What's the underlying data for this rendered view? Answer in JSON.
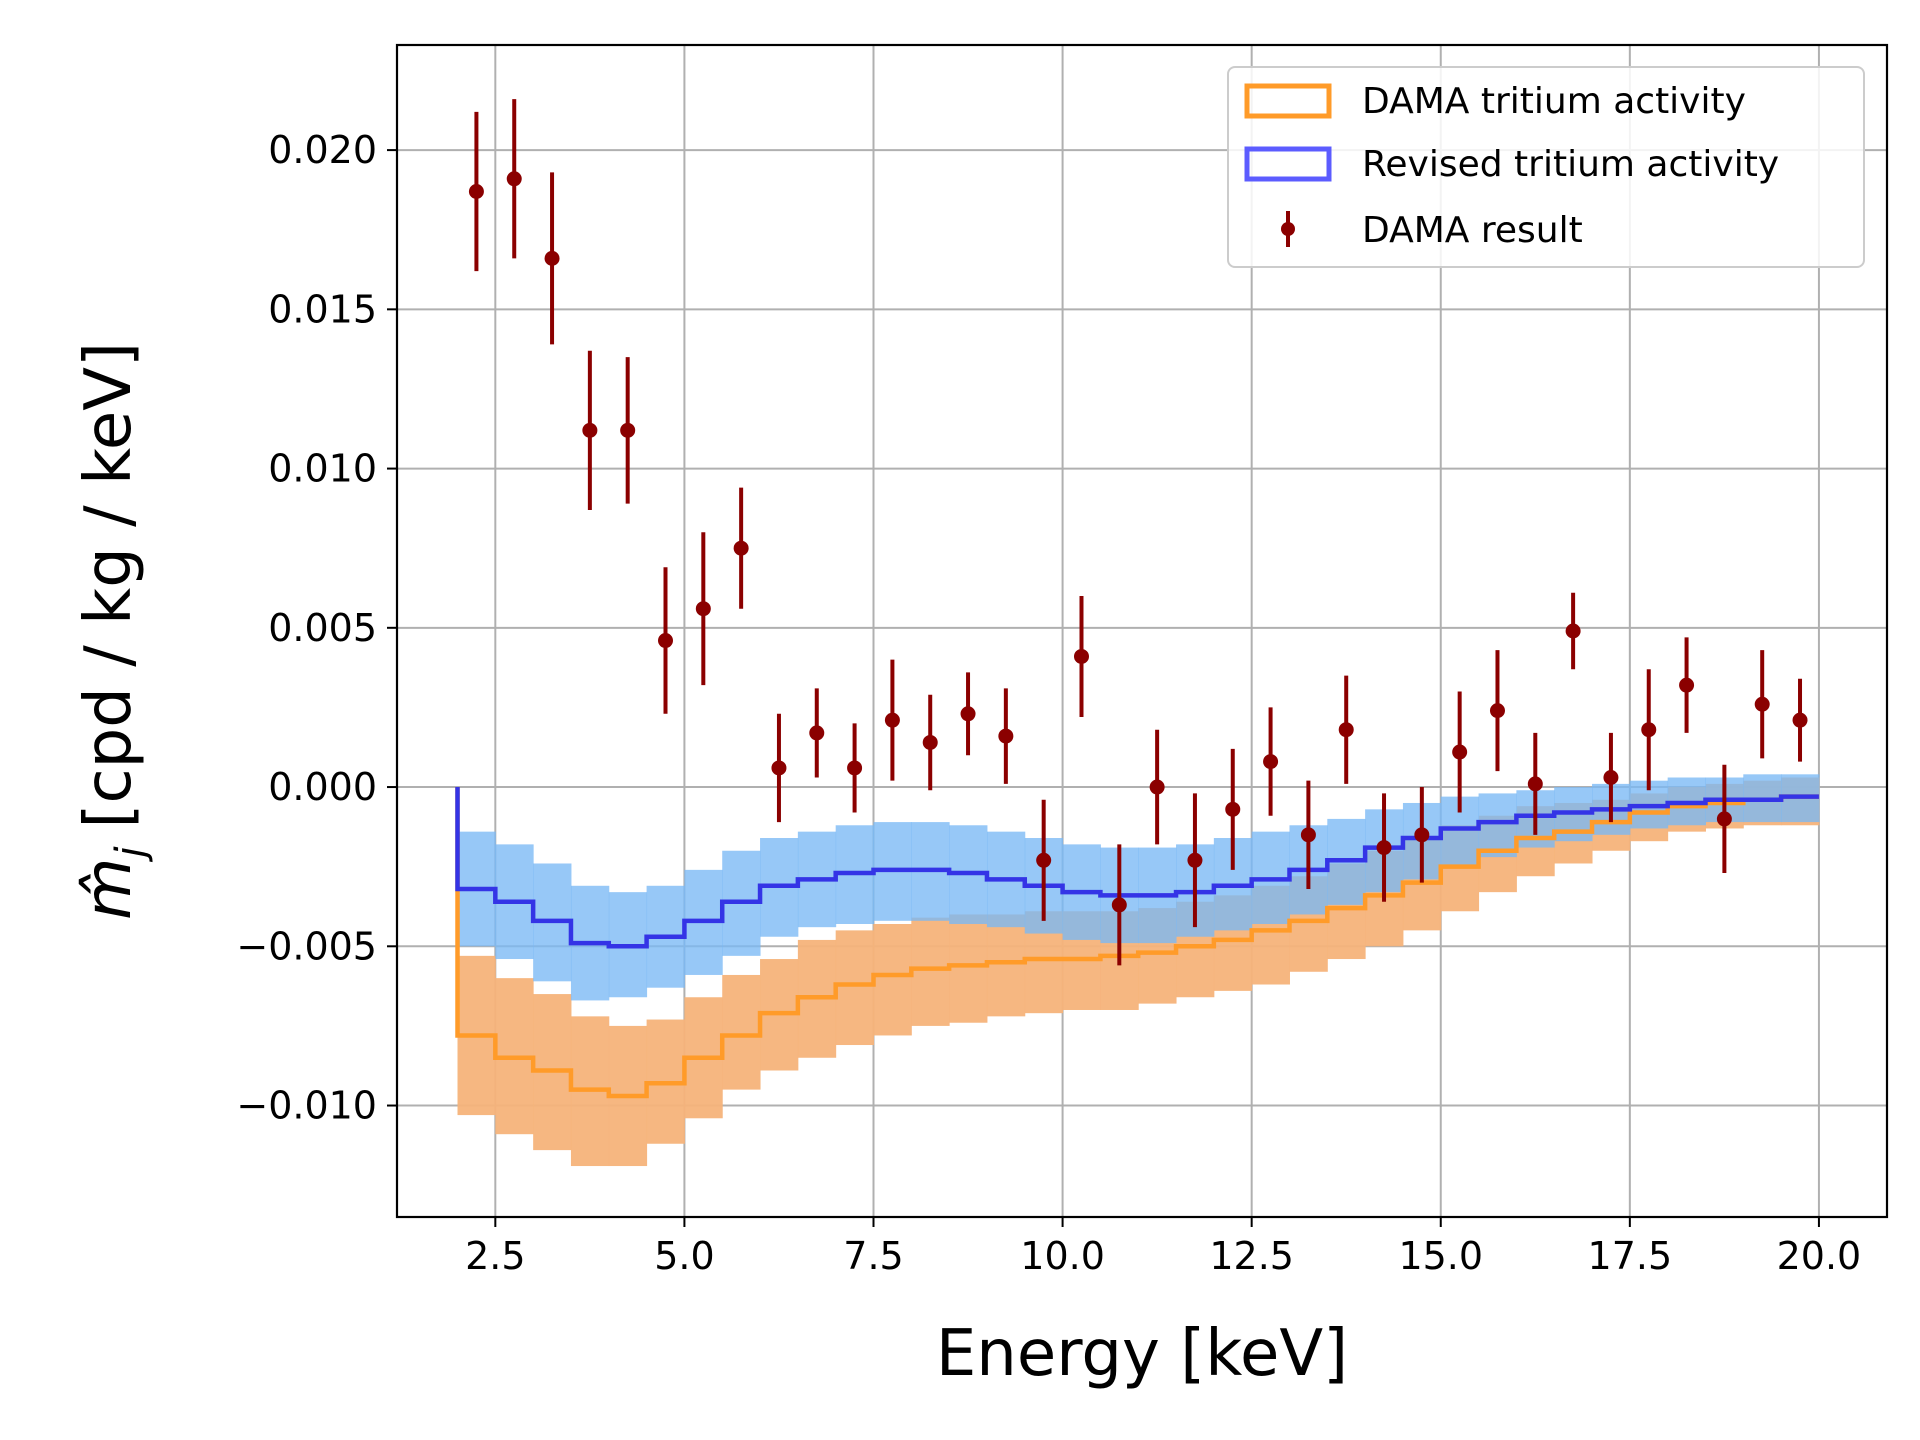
{
  "chart_data": {
    "type": "line",
    "title": "",
    "xlabel": "Energy [keV]",
    "ylabel": "m̂",
    "ylabel_subscript": "j",
    "ylabel_units": "[cpd / kg / keV]",
    "xlim": [
      1.2,
      20.9
    ],
    "ylim": [
      -0.0135,
      0.0233
    ],
    "x_ticks": [
      2.5,
      5.0,
      7.5,
      10.0,
      12.5,
      15.0,
      17.5,
      20.0
    ],
    "x_tick_labels": [
      "2.5",
      "5.0",
      "7.5",
      "10.0",
      "12.5",
      "15.0",
      "17.5",
      "20.0"
    ],
    "y_ticks": [
      -0.01,
      -0.005,
      0.0,
      0.005,
      0.01,
      0.015,
      0.02
    ],
    "y_tick_labels": [
      "−0.010",
      "−0.005",
      "0.000",
      "0.005",
      "0.010",
      "0.015",
      "0.020"
    ],
    "grid": true,
    "legend_position": "top-right",
    "legend": [
      {
        "label": "DAMA tritium activity",
        "kind": "patch",
        "color": "#ff9b29"
      },
      {
        "label": "Revised tritium activity",
        "kind": "patch",
        "color": "#5c5cff"
      },
      {
        "label": "DAMA result",
        "kind": "errorbar",
        "color": "#8b0000"
      }
    ],
    "bin_edges": [
      2.0,
      2.5,
      3.0,
      3.5,
      4.0,
      4.5,
      5.0,
      5.5,
      6.0,
      6.5,
      7.0,
      7.5,
      8.0,
      8.5,
      9.0,
      9.5,
      10.0,
      10.5,
      11.0,
      11.5,
      12.0,
      12.5,
      13.0,
      13.5,
      14.0,
      14.5,
      15.0,
      15.5,
      16.0,
      16.5,
      17.0,
      17.5,
      18.0,
      18.5,
      19.0,
      19.5,
      20.0
    ],
    "series": [
      {
        "name": "DAMA tritium activity",
        "color": "#ff9b29",
        "band_color": "#f5b37a",
        "values": [
          -0.0078,
          -0.0085,
          -0.0089,
          -0.0095,
          -0.0097,
          -0.0093,
          -0.0085,
          -0.0078,
          -0.0071,
          -0.0066,
          -0.0062,
          -0.0059,
          -0.0057,
          -0.0056,
          -0.0055,
          -0.0054,
          -0.0054,
          -0.0053,
          -0.0052,
          -0.005,
          -0.0048,
          -0.0045,
          -0.0042,
          -0.0038,
          -0.0034,
          -0.003,
          -0.0025,
          -0.002,
          -0.0016,
          -0.0014,
          -0.0011,
          -0.0008,
          -0.0006,
          -0.0005,
          -0.0004,
          -0.0003
        ],
        "lower": [
          -0.0103,
          -0.0109,
          -0.0114,
          -0.0119,
          -0.0119,
          -0.0112,
          -0.0104,
          -0.0095,
          -0.0089,
          -0.0085,
          -0.0081,
          -0.0078,
          -0.0075,
          -0.0074,
          -0.0072,
          -0.0071,
          -0.007,
          -0.007,
          -0.0068,
          -0.0066,
          -0.0064,
          -0.0062,
          -0.0058,
          -0.0054,
          -0.005,
          -0.0045,
          -0.0039,
          -0.0033,
          -0.0028,
          -0.0024,
          -0.002,
          -0.0017,
          -0.0014,
          -0.0013,
          -0.0012,
          -0.0012
        ],
        "upper": [
          -0.0053,
          -0.006,
          -0.0065,
          -0.0072,
          -0.0075,
          -0.0073,
          -0.0066,
          -0.0059,
          -0.0054,
          -0.0048,
          -0.0045,
          -0.0043,
          -0.0041,
          -0.004,
          -0.004,
          -0.0039,
          -0.0039,
          -0.0039,
          -0.0038,
          -0.0036,
          -0.0034,
          -0.0031,
          -0.0028,
          -0.0024,
          -0.002,
          -0.0016,
          -0.0012,
          -0.0009,
          -0.0006,
          -0.0005,
          -0.0004,
          -0.0002,
          0.0,
          0.0001,
          0.0002,
          0.0003
        ]
      },
      {
        "name": "Revised tritium activity",
        "color": "#3434e6",
        "band_color": "#7ab8f5",
        "values": [
          -0.0032,
          -0.0036,
          -0.0042,
          -0.0049,
          -0.005,
          -0.0047,
          -0.0042,
          -0.0036,
          -0.0031,
          -0.0029,
          -0.0027,
          -0.0026,
          -0.0026,
          -0.0027,
          -0.0029,
          -0.0031,
          -0.0033,
          -0.0034,
          -0.0034,
          -0.0033,
          -0.0031,
          -0.0029,
          -0.0026,
          -0.0023,
          -0.0019,
          -0.0016,
          -0.0013,
          -0.0011,
          -0.0009,
          -0.0008,
          -0.0007,
          -0.0006,
          -0.0005,
          -0.0004,
          -0.0004,
          -0.0003
        ],
        "lower": [
          -0.005,
          -0.0054,
          -0.0061,
          -0.0067,
          -0.0066,
          -0.0063,
          -0.0059,
          -0.0053,
          -0.0047,
          -0.0044,
          -0.0043,
          -0.0042,
          -0.0042,
          -0.0043,
          -0.0044,
          -0.0046,
          -0.0048,
          -0.0049,
          -0.0049,
          -0.0047,
          -0.0045,
          -0.0043,
          -0.004,
          -0.0037,
          -0.0033,
          -0.0029,
          -0.0025,
          -0.0022,
          -0.0019,
          -0.0017,
          -0.0015,
          -0.0013,
          -0.0012,
          -0.0011,
          -0.0011,
          -0.0011
        ],
        "upper": [
          -0.0014,
          -0.0018,
          -0.0024,
          -0.0031,
          -0.0033,
          -0.0031,
          -0.0026,
          -0.002,
          -0.0016,
          -0.0014,
          -0.0012,
          -0.0011,
          -0.0011,
          -0.0012,
          -0.0014,
          -0.0016,
          -0.0018,
          -0.0019,
          -0.0019,
          -0.0018,
          -0.0016,
          -0.0014,
          -0.0012,
          -0.001,
          -0.0007,
          -0.0005,
          -0.0003,
          -0.0002,
          -0.0001,
          0.0,
          0.0001,
          0.0002,
          0.0003,
          0.0003,
          0.0004,
          0.0004
        ]
      },
      {
        "name": "DAMA result",
        "color": "#8b0000",
        "x": [
          2.25,
          2.75,
          3.25,
          3.75,
          4.25,
          4.75,
          5.25,
          5.75,
          6.25,
          6.75,
          7.25,
          7.75,
          8.25,
          8.75,
          9.25,
          9.75,
          10.25,
          10.75,
          11.25,
          11.75,
          12.25,
          12.75,
          13.25,
          13.75,
          14.25,
          14.75,
          15.25,
          15.75,
          16.25,
          16.75,
          17.25,
          17.75,
          18.25,
          18.75,
          19.25,
          19.75
        ],
        "y": [
          0.0187,
          0.0191,
          0.0166,
          0.0112,
          0.0112,
          0.0046,
          0.0056,
          0.0075,
          0.0006,
          0.0017,
          0.0006,
          0.0021,
          0.0014,
          0.0023,
          0.0016,
          -0.0023,
          0.0041,
          -0.0037,
          0.0,
          -0.0023,
          -0.0007,
          0.0008,
          -0.0015,
          0.0018,
          -0.0019,
          -0.0015,
          0.0011,
          0.0024,
          0.0001,
          0.0049,
          0.0003,
          0.0018,
          0.0032,
          -0.001,
          0.0026,
          0.0021
        ],
        "yerr": [
          0.0025,
          0.0025,
          0.0027,
          0.0025,
          0.0023,
          0.0023,
          0.0024,
          0.0019,
          0.0017,
          0.0014,
          0.0014,
          0.0019,
          0.0015,
          0.0013,
          0.0015,
          0.0019,
          0.0019,
          0.0019,
          0.0018,
          0.0021,
          0.0019,
          0.0017,
          0.0017,
          0.0017,
          0.0017,
          0.0015,
          0.0019,
          0.0019,
          0.0016,
          0.0012,
          0.0014,
          0.0019,
          0.0015,
          0.0017,
          0.0017,
          0.0013
        ]
      }
    ]
  }
}
